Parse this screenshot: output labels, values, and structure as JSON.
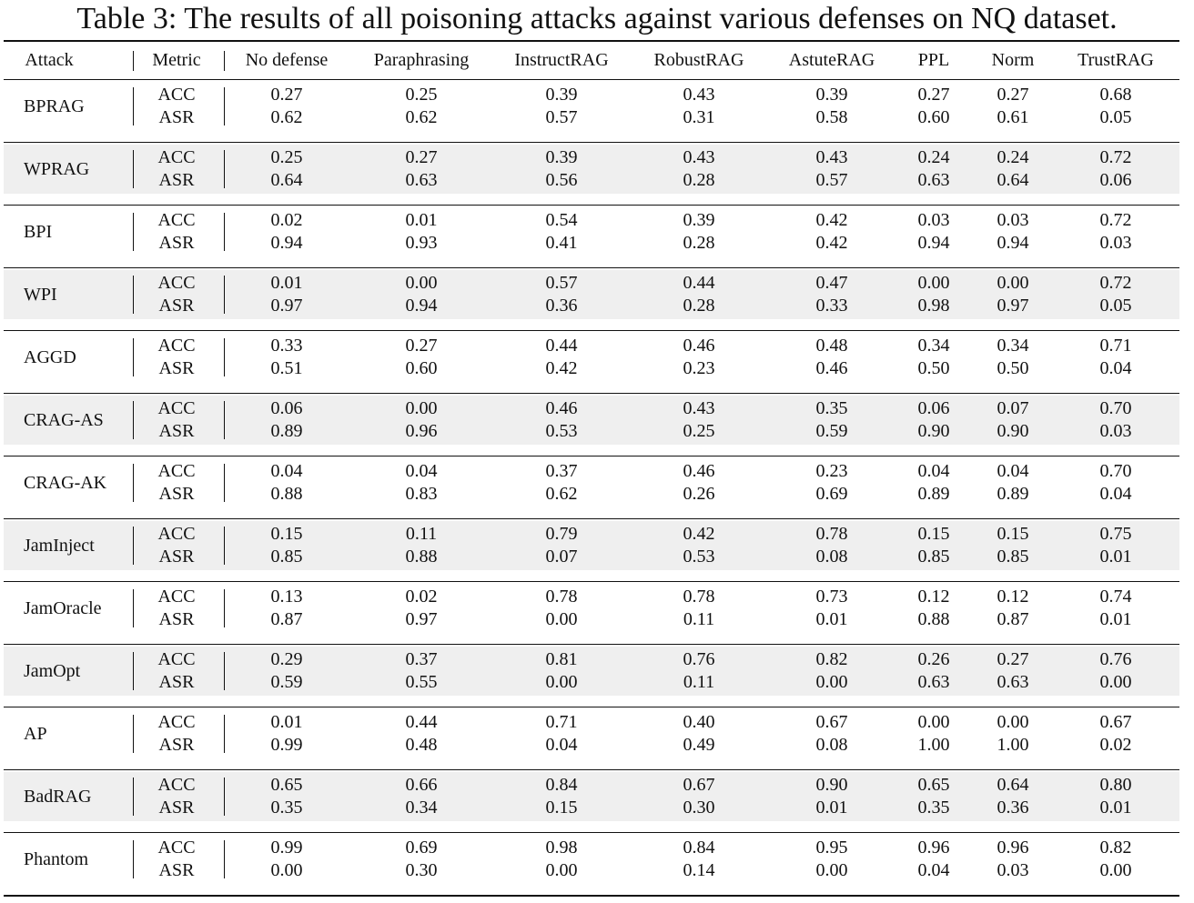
{
  "caption": "Table 3: The results of all poisoning attacks against various defenses on NQ dataset.",
  "headers": [
    "Attack",
    "Metric",
    "No defense",
    "Paraphrasing",
    "InstructRAG",
    "RobustRAG",
    "AstuteRAG",
    "PPL",
    "Norm",
    "TrustRAG"
  ],
  "rows": [
    {
      "attack": "BPRAG",
      "metrics": [
        {
          "metric": "ACC",
          "values": [
            "0.27",
            "0.25",
            "0.39",
            "0.43",
            "0.39",
            "0.27",
            "0.27",
            "0.68"
          ]
        },
        {
          "metric": "ASR",
          "values": [
            "0.62",
            "0.62",
            "0.57",
            "0.31",
            "0.58",
            "0.60",
            "0.61",
            "0.05"
          ]
        }
      ]
    },
    {
      "attack": "WPRAG",
      "metrics": [
        {
          "metric": "ACC",
          "values": [
            "0.25",
            "0.27",
            "0.39",
            "0.43",
            "0.43",
            "0.24",
            "0.24",
            "0.72"
          ]
        },
        {
          "metric": "ASR",
          "values": [
            "0.64",
            "0.63",
            "0.56",
            "0.28",
            "0.57",
            "0.63",
            "0.64",
            "0.06"
          ]
        }
      ]
    },
    {
      "attack": "BPI",
      "metrics": [
        {
          "metric": "ACC",
          "values": [
            "0.02",
            "0.01",
            "0.54",
            "0.39",
            "0.42",
            "0.03",
            "0.03",
            "0.72"
          ]
        },
        {
          "metric": "ASR",
          "values": [
            "0.94",
            "0.93",
            "0.41",
            "0.28",
            "0.42",
            "0.94",
            "0.94",
            "0.03"
          ]
        }
      ]
    },
    {
      "attack": "WPI",
      "metrics": [
        {
          "metric": "ACC",
          "values": [
            "0.01",
            "0.00",
            "0.57",
            "0.44",
            "0.47",
            "0.00",
            "0.00",
            "0.72"
          ]
        },
        {
          "metric": "ASR",
          "values": [
            "0.97",
            "0.94",
            "0.36",
            "0.28",
            "0.33",
            "0.98",
            "0.97",
            "0.05"
          ]
        }
      ]
    },
    {
      "attack": "AGGD",
      "metrics": [
        {
          "metric": "ACC",
          "values": [
            "0.33",
            "0.27",
            "0.44",
            "0.46",
            "0.48",
            "0.34",
            "0.34",
            "0.71"
          ]
        },
        {
          "metric": "ASR",
          "values": [
            "0.51",
            "0.60",
            "0.42",
            "0.23",
            "0.46",
            "0.50",
            "0.50",
            "0.04"
          ]
        }
      ]
    },
    {
      "attack": "CRAG-AS",
      "metrics": [
        {
          "metric": "ACC",
          "values": [
            "0.06",
            "0.00",
            "0.46",
            "0.43",
            "0.35",
            "0.06",
            "0.07",
            "0.70"
          ]
        },
        {
          "metric": "ASR",
          "values": [
            "0.89",
            "0.96",
            "0.53",
            "0.25",
            "0.59",
            "0.90",
            "0.90",
            "0.03"
          ]
        }
      ]
    },
    {
      "attack": "CRAG-AK",
      "metrics": [
        {
          "metric": "ACC",
          "values": [
            "0.04",
            "0.04",
            "0.37",
            "0.46",
            "0.23",
            "0.04",
            "0.04",
            "0.70"
          ]
        },
        {
          "metric": "ASR",
          "values": [
            "0.88",
            "0.83",
            "0.62",
            "0.26",
            "0.69",
            "0.89",
            "0.89",
            "0.04"
          ]
        }
      ]
    },
    {
      "attack": "JamInject",
      "metrics": [
        {
          "metric": "ACC",
          "values": [
            "0.15",
            "0.11",
            "0.79",
            "0.42",
            "0.78",
            "0.15",
            "0.15",
            "0.75"
          ]
        },
        {
          "metric": "ASR",
          "values": [
            "0.85",
            "0.88",
            "0.07",
            "0.53",
            "0.08",
            "0.85",
            "0.85",
            "0.01"
          ]
        }
      ]
    },
    {
      "attack": "JamOracle",
      "metrics": [
        {
          "metric": "ACC",
          "values": [
            "0.13",
            "0.02",
            "0.78",
            "0.78",
            "0.73",
            "0.12",
            "0.12",
            "0.74"
          ]
        },
        {
          "metric": "ASR",
          "values": [
            "0.87",
            "0.97",
            "0.00",
            "0.11",
            "0.01",
            "0.88",
            "0.87",
            "0.01"
          ]
        }
      ]
    },
    {
      "attack": "JamOpt",
      "metrics": [
        {
          "metric": "ACC",
          "values": [
            "0.29",
            "0.37",
            "0.81",
            "0.76",
            "0.82",
            "0.26",
            "0.27",
            "0.76"
          ]
        },
        {
          "metric": "ASR",
          "values": [
            "0.59",
            "0.55",
            "0.00",
            "0.11",
            "0.00",
            "0.63",
            "0.63",
            "0.00"
          ]
        }
      ]
    },
    {
      "attack": "AP",
      "metrics": [
        {
          "metric": "ACC",
          "values": [
            "0.01",
            "0.44",
            "0.71",
            "0.40",
            "0.67",
            "0.00",
            "0.00",
            "0.67"
          ]
        },
        {
          "metric": "ASR",
          "values": [
            "0.99",
            "0.48",
            "0.04",
            "0.49",
            "0.08",
            "1.00",
            "1.00",
            "0.02"
          ]
        }
      ]
    },
    {
      "attack": "BadRAG",
      "metrics": [
        {
          "metric": "ACC",
          "values": [
            "0.65",
            "0.66",
            "0.84",
            "0.67",
            "0.90",
            "0.65",
            "0.64",
            "0.80"
          ]
        },
        {
          "metric": "ASR",
          "values": [
            "0.35",
            "0.34",
            "0.15",
            "0.30",
            "0.01",
            "0.35",
            "0.36",
            "0.01"
          ]
        }
      ]
    },
    {
      "attack": "Phantom",
      "metrics": [
        {
          "metric": "ACC",
          "values": [
            "0.99",
            "0.69",
            "0.98",
            "0.84",
            "0.95",
            "0.96",
            "0.96",
            "0.82"
          ]
        },
        {
          "metric": "ASR",
          "values": [
            "0.00",
            "0.30",
            "0.00",
            "0.14",
            "0.00",
            "0.04",
            "0.03",
            "0.00"
          ]
        }
      ]
    }
  ]
}
